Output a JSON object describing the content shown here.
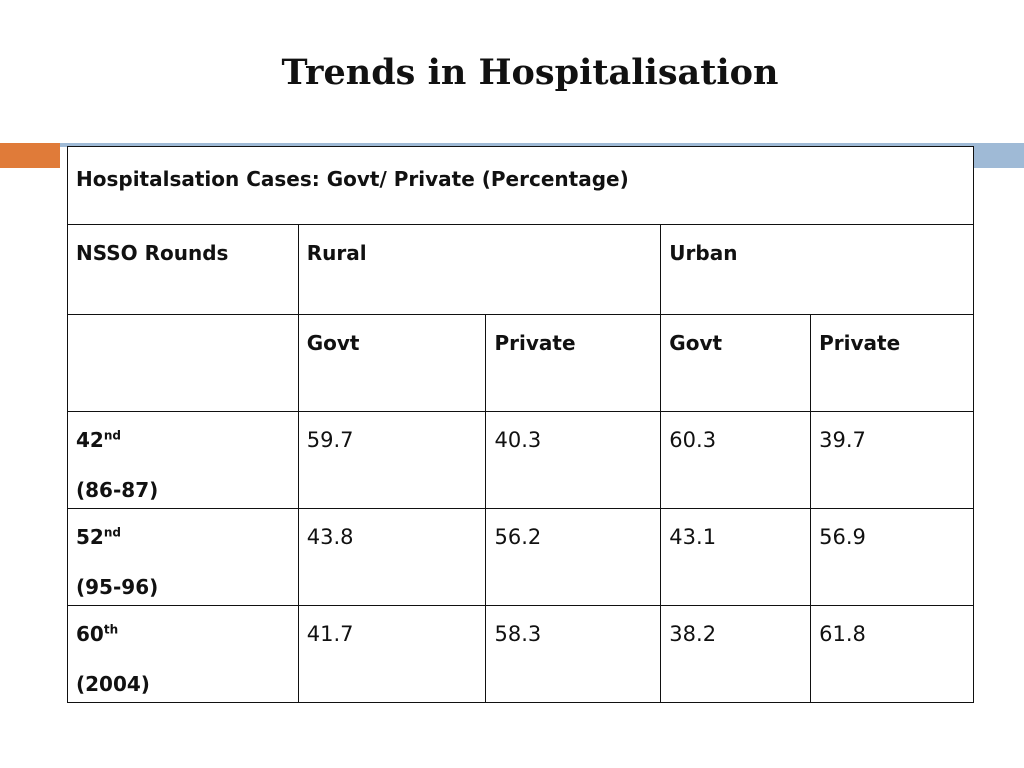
{
  "slide": {
    "title": "Trends in Hospitalisation",
    "accent_colors": {
      "orange": "#e07b39",
      "blue": "#9fbad6"
    }
  },
  "table": {
    "caption": "Hospitalsation Cases: Govt/ Private  (Percentage)",
    "header": {
      "rounds_label": "NSSO Rounds",
      "rural_label": "Rural",
      "urban_label": "Urban"
    },
    "subheader": {
      "rural_govt": "Govt",
      "rural_private": "Private",
      "urban_govt": "Govt",
      "urban_private": "Private"
    },
    "rows": [
      {
        "round": "42",
        "suffix": "nd",
        "years": "(86-87)",
        "rural_govt": "59.7",
        "rural_private": "40.3",
        "urban_govt": "60.3",
        "urban_private": "39.7"
      },
      {
        "round": "52",
        "suffix": "nd",
        "years": "(95-96)",
        "rural_govt": "43.8",
        "rural_private": "56.2",
        "urban_govt": "43.1",
        "urban_private": "56.9"
      },
      {
        "round": "60",
        "suffix": "th",
        "years": "(2004)",
        "rural_govt": "41.7",
        "rural_private": "58.3",
        "urban_govt": "38.2",
        "urban_private": "61.8"
      }
    ]
  }
}
